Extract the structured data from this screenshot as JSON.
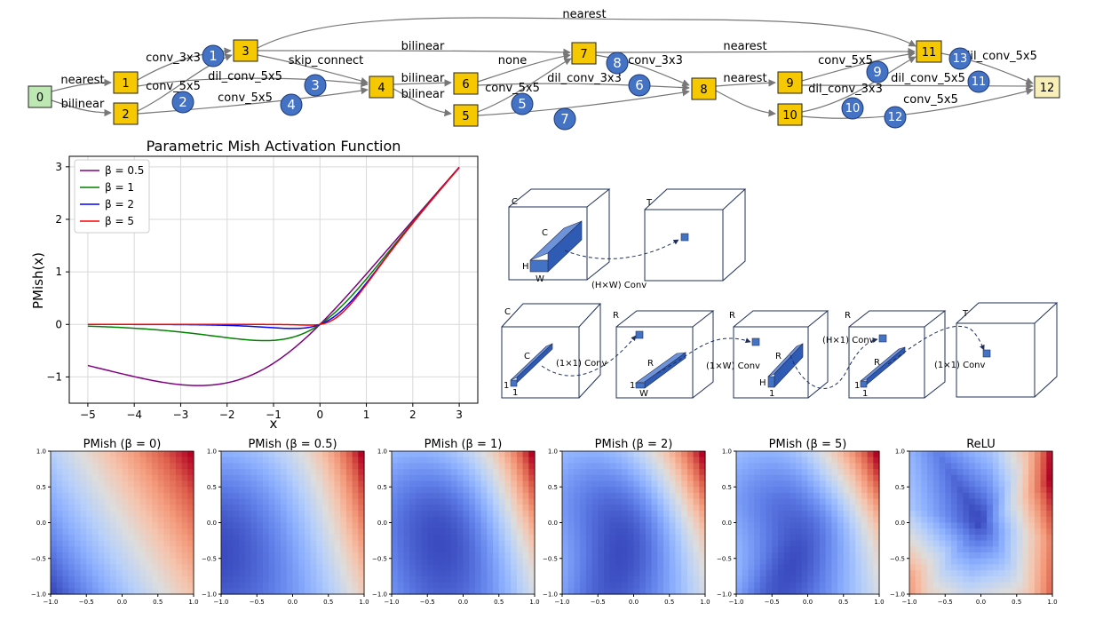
{
  "graph": {
    "nodes": [
      {
        "id": "0",
        "label": "0",
        "kind": "input"
      },
      {
        "id": "1",
        "label": "1",
        "kind": "op"
      },
      {
        "id": "2",
        "label": "2",
        "kind": "op"
      },
      {
        "id": "3",
        "label": "3",
        "kind": "op"
      },
      {
        "id": "4",
        "label": "4",
        "kind": "op"
      },
      {
        "id": "5",
        "label": "5",
        "kind": "op"
      },
      {
        "id": "6",
        "label": "6",
        "kind": "op"
      },
      {
        "id": "7",
        "label": "7",
        "kind": "op"
      },
      {
        "id": "8",
        "label": "8",
        "kind": "op"
      },
      {
        "id": "9",
        "label": "9",
        "kind": "op"
      },
      {
        "id": "10",
        "label": "10",
        "kind": "op"
      },
      {
        "id": "11",
        "label": "11",
        "kind": "op"
      },
      {
        "id": "12",
        "label": "12",
        "kind": "output"
      }
    ],
    "edge_labels": [
      "nearest",
      "conv_3x3",
      "bilinear",
      "skip_connect",
      "none",
      "nearest",
      "conv_5x5",
      "nearest",
      "conv_5x5",
      "conv_3x3",
      "dil_conv_5x5",
      "bilinear",
      "nearest",
      "conv_5x5",
      "dil_conv_3x3",
      "dil_conv_5x5",
      "bilinear",
      "conv_5x5",
      "dil_conv_5x5",
      "dil_conv_3x3",
      "bilinear",
      "conv_5x5"
    ],
    "markers": [
      "1",
      "2",
      "3",
      "4",
      "5",
      "6",
      "7",
      "8",
      "9",
      "10",
      "11",
      "12",
      "13"
    ],
    "colors": {
      "op_fill": "#f5c800",
      "input_fill": "#bde8b3",
      "output_fill": "#f7eeb8",
      "marker_fill": "#4472c4",
      "edge": "#666666"
    }
  },
  "mish_plot": {
    "chart_data": {
      "type": "line",
      "title": "Parametric Mish Activation Function",
      "xlabel": "x",
      "ylabel": "PMish(x)",
      "xlim": [
        -5.4,
        3.4
      ],
      "ylim": [
        -1.5,
        3.2
      ],
      "xticks": [
        "−5",
        "−4",
        "−3",
        "−2",
        "−1",
        "0",
        "1",
        "2",
        "3"
      ],
      "yticks": [
        "−1",
        "0",
        "1",
        "2",
        "3"
      ],
      "grid": true,
      "legend_position": "top-left",
      "function": "x * tanh(softplus(beta * x) / beta)",
      "x_range": [
        -5,
        3
      ],
      "series": [
        {
          "name": "β = 0.5",
          "beta": 0.5,
          "color": "#800080"
        },
        {
          "name": "β = 1",
          "beta": 1,
          "color": "#008000"
        },
        {
          "name": "β = 2",
          "beta": 2,
          "color": "#0000ff"
        },
        {
          "name": "β = 5",
          "beta": 5,
          "color": "#ff0000"
        }
      ]
    }
  },
  "conv_diagram": {
    "top_row": [
      {
        "corner_label": "C",
        "bar_labels": [
          "C",
          "H",
          "W"
        ],
        "op_label": "(H×W) Conv"
      },
      {
        "corner_label": "T"
      }
    ],
    "bottom_row": [
      {
        "corner_label": "C",
        "bar_labels": [
          "C",
          "1",
          "1"
        ],
        "op_label": "(1×1) Conv"
      },
      {
        "corner_label": "R",
        "bar_labels": [
          "R",
          "1",
          "W"
        ],
        "op_label": "(1×W) Conv"
      },
      {
        "corner_label": "R",
        "bar_labels": [
          "R",
          "H",
          "1"
        ],
        "op_label": "(H×1) Conv"
      },
      {
        "corner_label": "R",
        "bar_labels": [
          "R",
          "1",
          "1"
        ],
        "op_label": "(1×1) Conv"
      },
      {
        "corner_label": "T"
      }
    ],
    "colors": {
      "block": "#4472c4",
      "cube_edge": "#1f2f5a"
    }
  },
  "heatmaps": {
    "chart_data": {
      "type": "heatmap",
      "colormap": "coolwarm",
      "xlim": [
        -1,
        1
      ],
      "ylim": [
        -1,
        1
      ],
      "xticks": [
        "−1.0",
        "−0.5",
        "0.0",
        "0.5",
        "1.0"
      ],
      "yticks": [
        "1.0",
        "0.5",
        "0.0",
        "−0.5",
        "−1.0"
      ],
      "panels": [
        {
          "title": "PMish (β = 0)",
          "beta": 0
        },
        {
          "title": "PMish (β = 0.5)",
          "beta": 0.5
        },
        {
          "title": "PMish (β = 1)",
          "beta": 1
        },
        {
          "title": "PMish (β = 2)",
          "beta": 2
        },
        {
          "title": "PMish (β = 5)",
          "beta": 5
        },
        {
          "title": "ReLU",
          "beta": null
        }
      ]
    }
  }
}
